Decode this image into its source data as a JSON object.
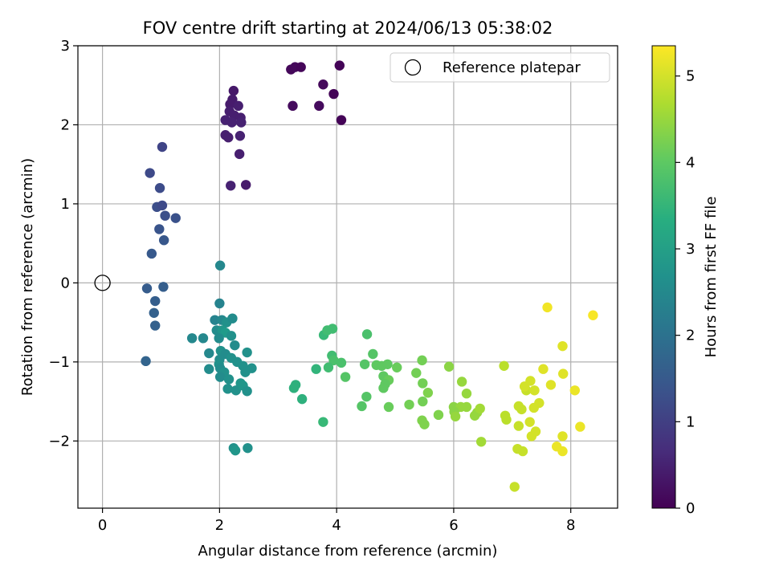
{
  "chart_data": {
    "type": "scatter",
    "title": "FOV centre drift starting at 2024/06/13 05:38:02",
    "xlabel": "Angular distance from reference (arcmin)",
    "ylabel": "Rotation from reference (arcmin)",
    "xlim": [
      -0.42,
      8.8
    ],
    "ylim": [
      -2.85,
      3.0
    ],
    "xticks": [
      0,
      2,
      4,
      6,
      8
    ],
    "yticks": [
      -2,
      -1,
      0,
      1,
      2,
      3
    ],
    "grid": true,
    "legend": {
      "placement": "top-right",
      "entries": [
        "Reference platepar"
      ]
    },
    "reference_point": {
      "x": 0,
      "y": 0,
      "label": "Reference platepar"
    },
    "colorbar": {
      "label": "Hours from first FF file",
      "colormap": "viridis",
      "range": [
        0,
        5.35
      ],
      "ticks": [
        0,
        1,
        2,
        3,
        4,
        5
      ]
    },
    "points": [
      {
        "x": 3.22,
        "y": 2.7,
        "c": 0.1
      },
      {
        "x": 3.29,
        "y": 2.73,
        "c": 0.12
      },
      {
        "x": 3.39,
        "y": 2.73,
        "c": 0.08
      },
      {
        "x": 4.05,
        "y": 2.75,
        "c": 0.05
      },
      {
        "x": 3.77,
        "y": 2.51,
        "c": 0.12
      },
      {
        "x": 3.95,
        "y": 2.39,
        "c": 0.05
      },
      {
        "x": 3.25,
        "y": 2.24,
        "c": 0.15
      },
      {
        "x": 3.7,
        "y": 2.24,
        "c": 0.15
      },
      {
        "x": 4.08,
        "y": 2.06,
        "c": 0.05
      },
      {
        "x": 2.24,
        "y": 2.43,
        "c": 0.35
      },
      {
        "x": 2.22,
        "y": 2.32,
        "c": 0.4
      },
      {
        "x": 2.18,
        "y": 2.26,
        "c": 0.4
      },
      {
        "x": 2.32,
        "y": 2.24,
        "c": 0.45
      },
      {
        "x": 2.17,
        "y": 2.17,
        "c": 0.45
      },
      {
        "x": 2.25,
        "y": 2.12,
        "c": 0.45
      },
      {
        "x": 2.36,
        "y": 2.09,
        "c": 0.45
      },
      {
        "x": 2.1,
        "y": 2.06,
        "c": 0.5
      },
      {
        "x": 2.21,
        "y": 2.03,
        "c": 0.5
      },
      {
        "x": 2.37,
        "y": 2.03,
        "c": 0.5
      },
      {
        "x": 2.1,
        "y": 1.87,
        "c": 0.45
      },
      {
        "x": 2.15,
        "y": 1.84,
        "c": 0.45
      },
      {
        "x": 2.35,
        "y": 1.86,
        "c": 0.5
      },
      {
        "x": 2.34,
        "y": 1.63,
        "c": 0.45
      },
      {
        "x": 2.19,
        "y": 1.23,
        "c": 0.5
      },
      {
        "x": 2.45,
        "y": 1.24,
        "c": 0.4
      },
      {
        "x": 1.02,
        "y": 1.72,
        "c": 1.1
      },
      {
        "x": 0.81,
        "y": 1.39,
        "c": 1.2
      },
      {
        "x": 0.98,
        "y": 1.2,
        "c": 1.25
      },
      {
        "x": 0.93,
        "y": 0.96,
        "c": 1.3
      },
      {
        "x": 1.02,
        "y": 0.98,
        "c": 1.2
      },
      {
        "x": 1.07,
        "y": 0.85,
        "c": 1.3
      },
      {
        "x": 1.25,
        "y": 0.82,
        "c": 1.35
      },
      {
        "x": 0.97,
        "y": 0.68,
        "c": 1.4
      },
      {
        "x": 1.05,
        "y": 0.54,
        "c": 1.45
      },
      {
        "x": 0.84,
        "y": 0.37,
        "c": 1.5
      },
      {
        "x": 1.04,
        "y": -0.05,
        "c": 1.6
      },
      {
        "x": 0.76,
        "y": -0.07,
        "c": 1.55
      },
      {
        "x": 0.9,
        "y": -0.23,
        "c": 1.6
      },
      {
        "x": 0.88,
        "y": -0.38,
        "c": 1.65
      },
      {
        "x": 0.9,
        "y": -0.54,
        "c": 1.65
      },
      {
        "x": 0.74,
        "y": -0.99,
        "c": 1.7
      },
      {
        "x": 2.01,
        "y": 0.22,
        "c": 2.5
      },
      {
        "x": 2.0,
        "y": -0.26,
        "c": 2.4
      },
      {
        "x": 1.92,
        "y": -0.47,
        "c": 2.4
      },
      {
        "x": 2.04,
        "y": -0.47,
        "c": 2.5
      },
      {
        "x": 2.12,
        "y": -0.5,
        "c": 2.7
      },
      {
        "x": 2.22,
        "y": -0.45,
        "c": 2.6
      },
      {
        "x": 1.95,
        "y": -0.6,
        "c": 2.6
      },
      {
        "x": 2.05,
        "y": -0.6,
        "c": 2.8
      },
      {
        "x": 2.1,
        "y": -0.63,
        "c": 2.9
      },
      {
        "x": 2.2,
        "y": -0.67,
        "c": 2.7
      },
      {
        "x": 1.53,
        "y": -0.7,
        "c": 2.5
      },
      {
        "x": 1.72,
        "y": -0.7,
        "c": 2.5
      },
      {
        "x": 1.99,
        "y": -0.7,
        "c": 2.6
      },
      {
        "x": 2.26,
        "y": -0.79,
        "c": 2.6
      },
      {
        "x": 1.82,
        "y": -0.89,
        "c": 2.5
      },
      {
        "x": 2.02,
        "y": -0.86,
        "c": 2.7
      },
      {
        "x": 2.1,
        "y": -0.9,
        "c": 2.6
      },
      {
        "x": 2.47,
        "y": -0.88,
        "c": 2.7
      },
      {
        "x": 2.0,
        "y": -0.97,
        "c": 2.6
      },
      {
        "x": 2.2,
        "y": -0.95,
        "c": 2.7
      },
      {
        "x": 2.3,
        "y": -1.0,
        "c": 2.7
      },
      {
        "x": 1.99,
        "y": -1.03,
        "c": 2.7
      },
      {
        "x": 2.4,
        "y": -1.05,
        "c": 2.7
      },
      {
        "x": 1.82,
        "y": -1.09,
        "c": 2.6
      },
      {
        "x": 2.01,
        "y": -1.08,
        "c": 2.6
      },
      {
        "x": 2.08,
        "y": -1.13,
        "c": 2.7
      },
      {
        "x": 2.44,
        "y": -1.13,
        "c": 2.7
      },
      {
        "x": 2.55,
        "y": -1.08,
        "c": 2.7
      },
      {
        "x": 2.01,
        "y": -1.19,
        "c": 2.6
      },
      {
        "x": 2.16,
        "y": -1.22,
        "c": 2.7
      },
      {
        "x": 2.36,
        "y": -1.27,
        "c": 2.8
      },
      {
        "x": 2.14,
        "y": -1.34,
        "c": 2.7
      },
      {
        "x": 2.28,
        "y": -1.36,
        "c": 2.7
      },
      {
        "x": 2.4,
        "y": -1.3,
        "c": 2.8
      },
      {
        "x": 2.47,
        "y": -1.37,
        "c": 2.7
      },
      {
        "x": 2.24,
        "y": -2.09,
        "c": 2.7
      },
      {
        "x": 2.27,
        "y": -2.12,
        "c": 2.8
      },
      {
        "x": 2.48,
        "y": -2.09,
        "c": 2.7
      },
      {
        "x": 3.78,
        "y": -0.66,
        "c": 3.6
      },
      {
        "x": 3.84,
        "y": -0.6,
        "c": 3.7
      },
      {
        "x": 3.93,
        "y": -0.58,
        "c": 3.7
      },
      {
        "x": 4.52,
        "y": -0.65,
        "c": 3.8
      },
      {
        "x": 3.92,
        "y": -0.92,
        "c": 3.7
      },
      {
        "x": 3.95,
        "y": -0.98,
        "c": 3.8
      },
      {
        "x": 4.08,
        "y": -1.01,
        "c": 3.8
      },
      {
        "x": 3.86,
        "y": -1.07,
        "c": 3.7
      },
      {
        "x": 3.65,
        "y": -1.09,
        "c": 3.5
      },
      {
        "x": 4.15,
        "y": -1.19,
        "c": 3.9
      },
      {
        "x": 4.48,
        "y": -1.03,
        "c": 3.9
      },
      {
        "x": 4.62,
        "y": -0.9,
        "c": 3.9
      },
      {
        "x": 4.68,
        "y": -1.04,
        "c": 4.0
      },
      {
        "x": 4.77,
        "y": -1.05,
        "c": 4.0
      },
      {
        "x": 4.87,
        "y": -1.03,
        "c": 4.0
      },
      {
        "x": 4.8,
        "y": -1.18,
        "c": 4.0
      },
      {
        "x": 4.89,
        "y": -1.23,
        "c": 4.1
      },
      {
        "x": 4.83,
        "y": -1.28,
        "c": 4.0
      },
      {
        "x": 4.8,
        "y": -1.33,
        "c": 4.0
      },
      {
        "x": 5.03,
        "y": -1.07,
        "c": 4.1
      },
      {
        "x": 3.3,
        "y": -1.29,
        "c": 3.4
      },
      {
        "x": 3.27,
        "y": -1.33,
        "c": 3.4
      },
      {
        "x": 3.41,
        "y": -1.47,
        "c": 3.4
      },
      {
        "x": 4.51,
        "y": -1.44,
        "c": 3.9
      },
      {
        "x": 4.43,
        "y": -1.56,
        "c": 3.9
      },
      {
        "x": 4.89,
        "y": -1.57,
        "c": 4.1
      },
      {
        "x": 3.77,
        "y": -1.76,
        "c": 3.6
      },
      {
        "x": 5.36,
        "y": -1.14,
        "c": 4.2
      },
      {
        "x": 5.46,
        "y": -0.98,
        "c": 4.2
      },
      {
        "x": 5.47,
        "y": -1.27,
        "c": 4.2
      },
      {
        "x": 5.56,
        "y": -1.39,
        "c": 4.3
      },
      {
        "x": 5.24,
        "y": -1.54,
        "c": 4.2
      },
      {
        "x": 5.47,
        "y": -1.5,
        "c": 4.2
      },
      {
        "x": 5.46,
        "y": -1.74,
        "c": 4.3
      },
      {
        "x": 5.5,
        "y": -1.79,
        "c": 4.3
      },
      {
        "x": 5.74,
        "y": -1.67,
        "c": 4.3
      },
      {
        "x": 5.92,
        "y": -1.06,
        "c": 4.4
      },
      {
        "x": 6.14,
        "y": -1.25,
        "c": 4.5
      },
      {
        "x": 6.22,
        "y": -1.4,
        "c": 4.5
      },
      {
        "x": 6.0,
        "y": -1.57,
        "c": 4.4
      },
      {
        "x": 6.12,
        "y": -1.57,
        "c": 4.5
      },
      {
        "x": 6.22,
        "y": -1.57,
        "c": 4.5
      },
      {
        "x": 6.01,
        "y": -1.63,
        "c": 4.4
      },
      {
        "x": 6.03,
        "y": -1.69,
        "c": 4.5
      },
      {
        "x": 6.36,
        "y": -1.68,
        "c": 4.5
      },
      {
        "x": 6.4,
        "y": -1.64,
        "c": 4.5
      },
      {
        "x": 6.45,
        "y": -1.59,
        "c": 4.6
      },
      {
        "x": 6.47,
        "y": -2.01,
        "c": 4.6
      },
      {
        "x": 6.86,
        "y": -1.05,
        "c": 4.8
      },
      {
        "x": 6.88,
        "y": -1.68,
        "c": 4.8
      },
      {
        "x": 6.9,
        "y": -1.73,
        "c": 4.8
      },
      {
        "x": 7.11,
        "y": -1.56,
        "c": 4.9
      },
      {
        "x": 7.16,
        "y": -1.6,
        "c": 4.9
      },
      {
        "x": 7.24,
        "y": -1.36,
        "c": 4.9
      },
      {
        "x": 7.21,
        "y": -1.31,
        "c": 5.0
      },
      {
        "x": 7.31,
        "y": -1.24,
        "c": 5.0
      },
      {
        "x": 7.38,
        "y": -1.36,
        "c": 5.0
      },
      {
        "x": 7.46,
        "y": -1.52,
        "c": 5.0
      },
      {
        "x": 7.37,
        "y": -1.58,
        "c": 5.0
      },
      {
        "x": 7.11,
        "y": -1.81,
        "c": 4.9
      },
      {
        "x": 7.3,
        "y": -1.76,
        "c": 5.0
      },
      {
        "x": 7.4,
        "y": -1.88,
        "c": 5.0
      },
      {
        "x": 7.33,
        "y": -1.94,
        "c": 5.0
      },
      {
        "x": 7.09,
        "y": -2.1,
        "c": 4.9
      },
      {
        "x": 7.18,
        "y": -2.13,
        "c": 4.9
      },
      {
        "x": 7.04,
        "y": -2.58,
        "c": 4.9
      },
      {
        "x": 7.53,
        "y": -1.09,
        "c": 5.1
      },
      {
        "x": 7.66,
        "y": -1.29,
        "c": 5.1
      },
      {
        "x": 7.6,
        "y": -0.31,
        "c": 5.25
      },
      {
        "x": 7.86,
        "y": -0.8,
        "c": 5.1
      },
      {
        "x": 7.87,
        "y": -1.15,
        "c": 5.1
      },
      {
        "x": 8.07,
        "y": -1.36,
        "c": 5.2
      },
      {
        "x": 7.76,
        "y": -2.07,
        "c": 5.2
      },
      {
        "x": 7.86,
        "y": -1.94,
        "c": 5.1
      },
      {
        "x": 7.86,
        "y": -2.13,
        "c": 5.2
      },
      {
        "x": 8.16,
        "y": -1.82,
        "c": 5.2
      },
      {
        "x": 8.38,
        "y": -0.41,
        "c": 5.3
      }
    ]
  }
}
